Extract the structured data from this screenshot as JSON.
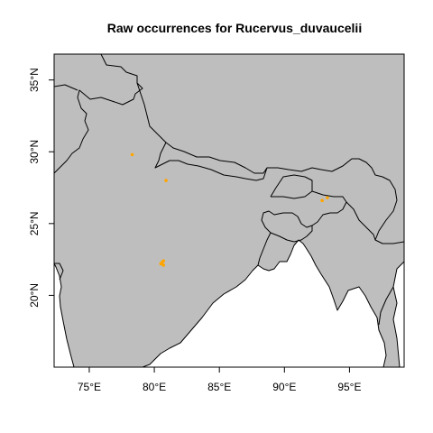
{
  "title": "Raw occurrences for Rucervus_duvaucelii",
  "colors": {
    "land": "#bebebe",
    "sea": "#ffffff",
    "point": "#ffa500",
    "border": "#000000"
  },
  "chart_data": {
    "type": "scatter",
    "title": "Raw occurrences for Rucervus_duvaucelii",
    "xlabel": "",
    "ylabel": "",
    "xlim": [
      72.3,
      99.2
    ],
    "ylim": [
      15.0,
      36.8
    ],
    "x_ticks": [
      {
        "value": 75,
        "label": "75°E"
      },
      {
        "value": 80,
        "label": "80°E"
      },
      {
        "value": 85,
        "label": "85°E"
      },
      {
        "value": 90,
        "label": "90°E"
      },
      {
        "value": 95,
        "label": "95°E"
      }
    ],
    "y_ticks": [
      {
        "value": 20,
        "label": "20°N"
      },
      {
        "value": 25,
        "label": "25°N"
      },
      {
        "value": 30,
        "label": "30°N"
      },
      {
        "value": 35,
        "label": "35°N"
      }
    ],
    "points": [
      {
        "lon": 78.3,
        "lat": 29.8
      },
      {
        "lon": 80.9,
        "lat": 28.0
      },
      {
        "lon": 80.6,
        "lat": 22.3
      },
      {
        "lon": 80.7,
        "lat": 22.4
      },
      {
        "lon": 80.5,
        "lat": 22.2
      },
      {
        "lon": 80.7,
        "lat": 22.1
      },
      {
        "lon": 92.9,
        "lat": 26.6
      },
      {
        "lon": 93.3,
        "lat": 26.8
      }
    ]
  }
}
